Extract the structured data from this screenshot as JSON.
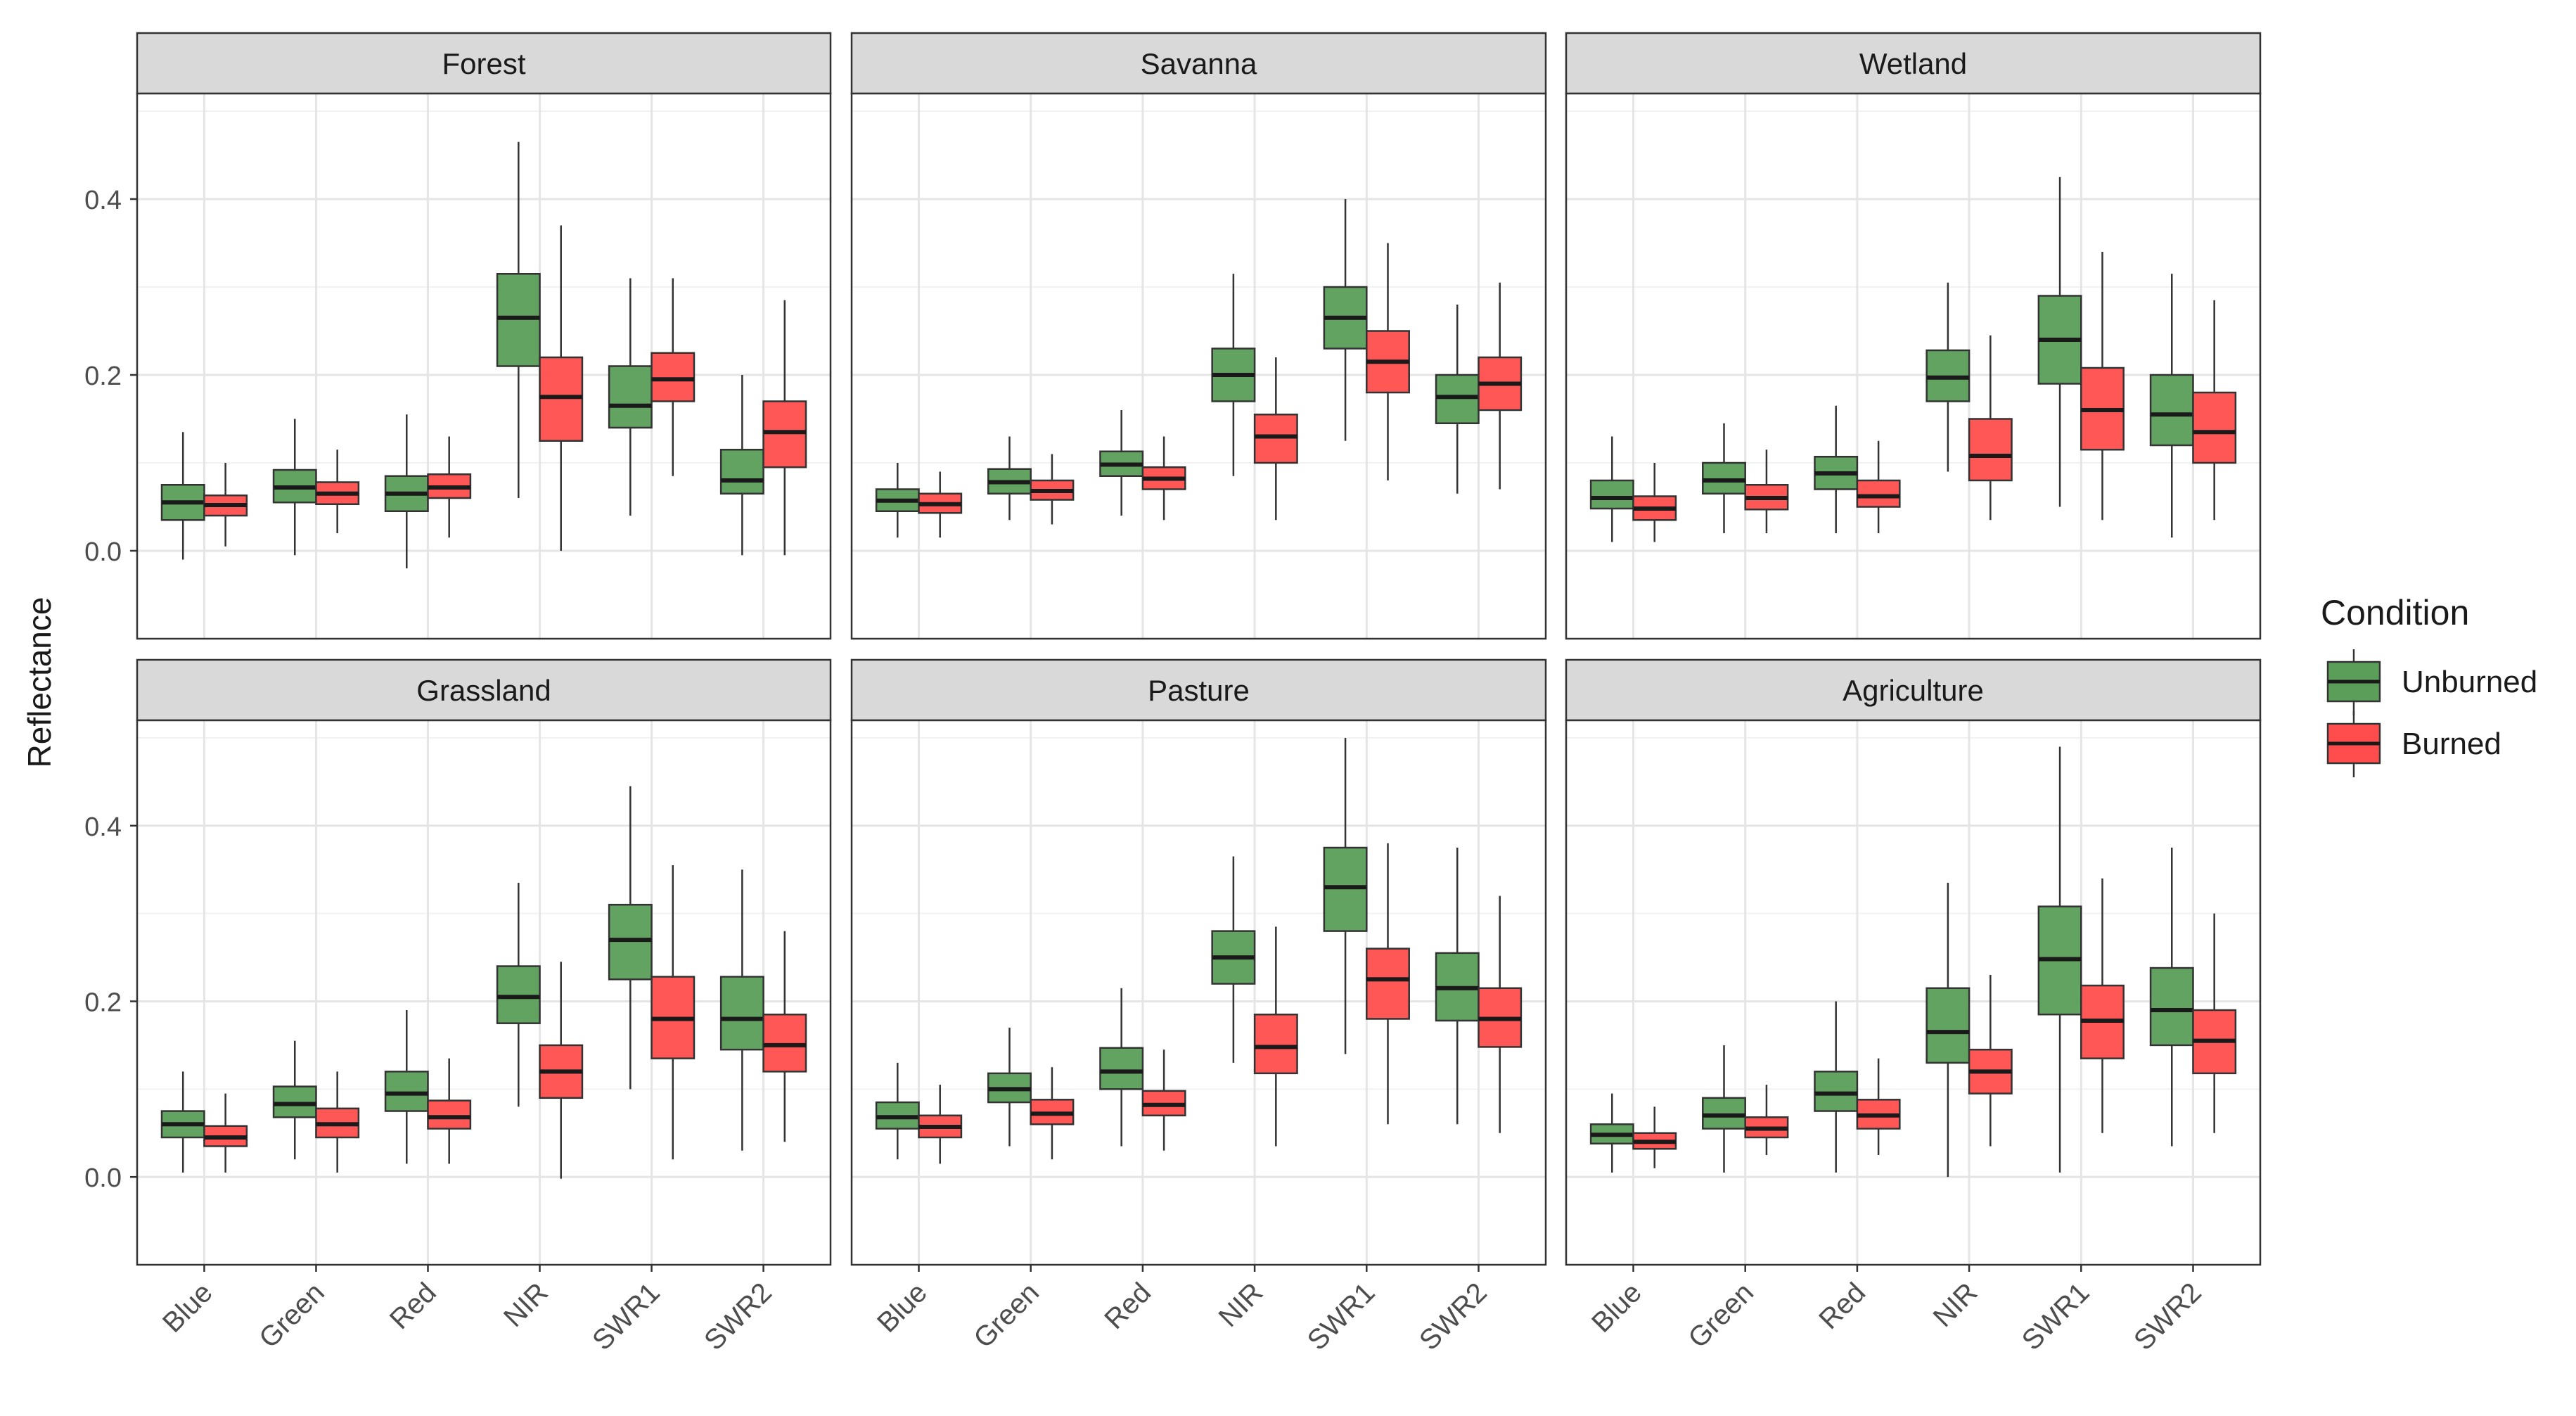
{
  "chart_data": {
    "type": "boxplot",
    "ylabel": "Reflectance",
    "ylim": [
      -0.1,
      0.52
    ],
    "yticks": [
      "0.0",
      "0.2",
      "0.4"
    ],
    "ytick_values": [
      0.0,
      0.2,
      0.4
    ],
    "categories": [
      "Blue",
      "Green",
      "Red",
      "NIR",
      "SWR1",
      "SWR2"
    ],
    "series_names": [
      "Unburned",
      "Burned"
    ],
    "colors": {
      "Unburned": "#5a9e5a",
      "Burned": "#ff4d4d"
    },
    "legend": {
      "title": "Condition",
      "position": "right"
    },
    "grid": true,
    "panels": [
      {
        "title": "Forest",
        "boxes": {
          "Unburned": [
            [
              -0.01,
              0.035,
              0.055,
              0.075,
              0.135
            ],
            [
              -0.005,
              0.055,
              0.072,
              0.092,
              0.15
            ],
            [
              -0.02,
              0.045,
              0.065,
              0.085,
              0.155
            ],
            [
              0.06,
              0.21,
              0.265,
              0.315,
              0.465
            ],
            [
              0.04,
              0.14,
              0.165,
              0.21,
              0.31
            ],
            [
              -0.005,
              0.065,
              0.08,
              0.115,
              0.2
            ]
          ],
          "Burned": [
            [
              0.005,
              0.04,
              0.052,
              0.063,
              0.1
            ],
            [
              0.02,
              0.053,
              0.065,
              0.078,
              0.115
            ],
            [
              0.015,
              0.06,
              0.072,
              0.087,
              0.13
            ],
            [
              0.0,
              0.125,
              0.175,
              0.22,
              0.37
            ],
            [
              0.085,
              0.17,
              0.195,
              0.225,
              0.31
            ],
            [
              -0.005,
              0.095,
              0.135,
              0.17,
              0.285
            ]
          ]
        }
      },
      {
        "title": "Savanna",
        "boxes": {
          "Unburned": [
            [
              0.015,
              0.045,
              0.057,
              0.07,
              0.1
            ],
            [
              0.035,
              0.065,
              0.078,
              0.093,
              0.13
            ],
            [
              0.04,
              0.085,
              0.098,
              0.113,
              0.16
            ],
            [
              0.085,
              0.17,
              0.2,
              0.23,
              0.315
            ],
            [
              0.125,
              0.23,
              0.265,
              0.3,
              0.4
            ],
            [
              0.065,
              0.145,
              0.175,
              0.2,
              0.28
            ]
          ],
          "Burned": [
            [
              0.015,
              0.043,
              0.053,
              0.065,
              0.09
            ],
            [
              0.03,
              0.058,
              0.068,
              0.08,
              0.11
            ],
            [
              0.035,
              0.07,
              0.082,
              0.095,
              0.13
            ],
            [
              0.035,
              0.1,
              0.13,
              0.155,
              0.22
            ],
            [
              0.08,
              0.18,
              0.215,
              0.25,
              0.35
            ],
            [
              0.07,
              0.16,
              0.19,
              0.22,
              0.305
            ]
          ]
        }
      },
      {
        "title": "Wetland",
        "boxes": {
          "Unburned": [
            [
              0.01,
              0.048,
              0.06,
              0.08,
              0.13
            ],
            [
              0.02,
              0.065,
              0.08,
              0.1,
              0.145
            ],
            [
              0.02,
              0.07,
              0.088,
              0.107,
              0.165
            ],
            [
              0.09,
              0.17,
              0.197,
              0.228,
              0.305
            ],
            [
              0.05,
              0.19,
              0.24,
              0.29,
              0.425
            ],
            [
              0.015,
              0.12,
              0.155,
              0.2,
              0.315
            ]
          ],
          "Burned": [
            [
              0.01,
              0.035,
              0.048,
              0.062,
              0.1
            ],
            [
              0.02,
              0.047,
              0.06,
              0.075,
              0.115
            ],
            [
              0.02,
              0.05,
              0.062,
              0.08,
              0.125
            ],
            [
              0.035,
              0.08,
              0.108,
              0.15,
              0.245
            ],
            [
              0.035,
              0.115,
              0.16,
              0.208,
              0.34
            ],
            [
              0.035,
              0.1,
              0.135,
              0.18,
              0.285
            ]
          ]
        }
      },
      {
        "title": "Grassland",
        "boxes": {
          "Unburned": [
            [
              0.005,
              0.045,
              0.06,
              0.075,
              0.12
            ],
            [
              0.02,
              0.068,
              0.083,
              0.103,
              0.155
            ],
            [
              0.015,
              0.075,
              0.095,
              0.12,
              0.19
            ],
            [
              0.08,
              0.175,
              0.205,
              0.24,
              0.335
            ],
            [
              0.1,
              0.225,
              0.27,
              0.31,
              0.445
            ],
            [
              0.03,
              0.145,
              0.18,
              0.228,
              0.35
            ]
          ],
          "Burned": [
            [
              0.005,
              0.035,
              0.045,
              0.058,
              0.095
            ],
            [
              0.005,
              0.045,
              0.06,
              0.078,
              0.12
            ],
            [
              0.015,
              0.055,
              0.068,
              0.087,
              0.135
            ],
            [
              -0.002,
              0.09,
              0.12,
              0.15,
              0.245
            ],
            [
              0.02,
              0.135,
              0.18,
              0.228,
              0.355
            ],
            [
              0.04,
              0.12,
              0.15,
              0.185,
              0.28
            ]
          ]
        }
      },
      {
        "title": "Pasture",
        "boxes": {
          "Unburned": [
            [
              0.02,
              0.055,
              0.068,
              0.085,
              0.13
            ],
            [
              0.035,
              0.085,
              0.1,
              0.118,
              0.17
            ],
            [
              0.035,
              0.1,
              0.12,
              0.147,
              0.215
            ],
            [
              0.13,
              0.22,
              0.25,
              0.28,
              0.365
            ],
            [
              0.14,
              0.28,
              0.33,
              0.375,
              0.5
            ],
            [
              0.06,
              0.178,
              0.215,
              0.255,
              0.375
            ]
          ],
          "Burned": [
            [
              0.015,
              0.045,
              0.057,
              0.07,
              0.105
            ],
            [
              0.02,
              0.06,
              0.072,
              0.088,
              0.125
            ],
            [
              0.03,
              0.07,
              0.082,
              0.098,
              0.145
            ],
            [
              0.035,
              0.118,
              0.148,
              0.185,
              0.285
            ],
            [
              0.06,
              0.18,
              0.225,
              0.26,
              0.38
            ],
            [
              0.05,
              0.148,
              0.18,
              0.215,
              0.32
            ]
          ]
        }
      },
      {
        "title": "Agriculture",
        "boxes": {
          "Unburned": [
            [
              0.005,
              0.038,
              0.048,
              0.06,
              0.095
            ],
            [
              0.005,
              0.055,
              0.07,
              0.09,
              0.15
            ],
            [
              0.005,
              0.075,
              0.095,
              0.12,
              0.2
            ],
            [
              0.0,
              0.13,
              0.165,
              0.215,
              0.335
            ],
            [
              0.005,
              0.185,
              0.248,
              0.308,
              0.49
            ],
            [
              0.035,
              0.15,
              0.19,
              0.238,
              0.375
            ]
          ],
          "Burned": [
            [
              0.01,
              0.032,
              0.04,
              0.05,
              0.08
            ],
            [
              0.025,
              0.045,
              0.055,
              0.068,
              0.105
            ],
            [
              0.025,
              0.055,
              0.07,
              0.088,
              0.135
            ],
            [
              0.035,
              0.095,
              0.12,
              0.145,
              0.23
            ],
            [
              0.05,
              0.135,
              0.178,
              0.218,
              0.34
            ],
            [
              0.05,
              0.118,
              0.155,
              0.19,
              0.3
            ]
          ]
        }
      }
    ]
  }
}
